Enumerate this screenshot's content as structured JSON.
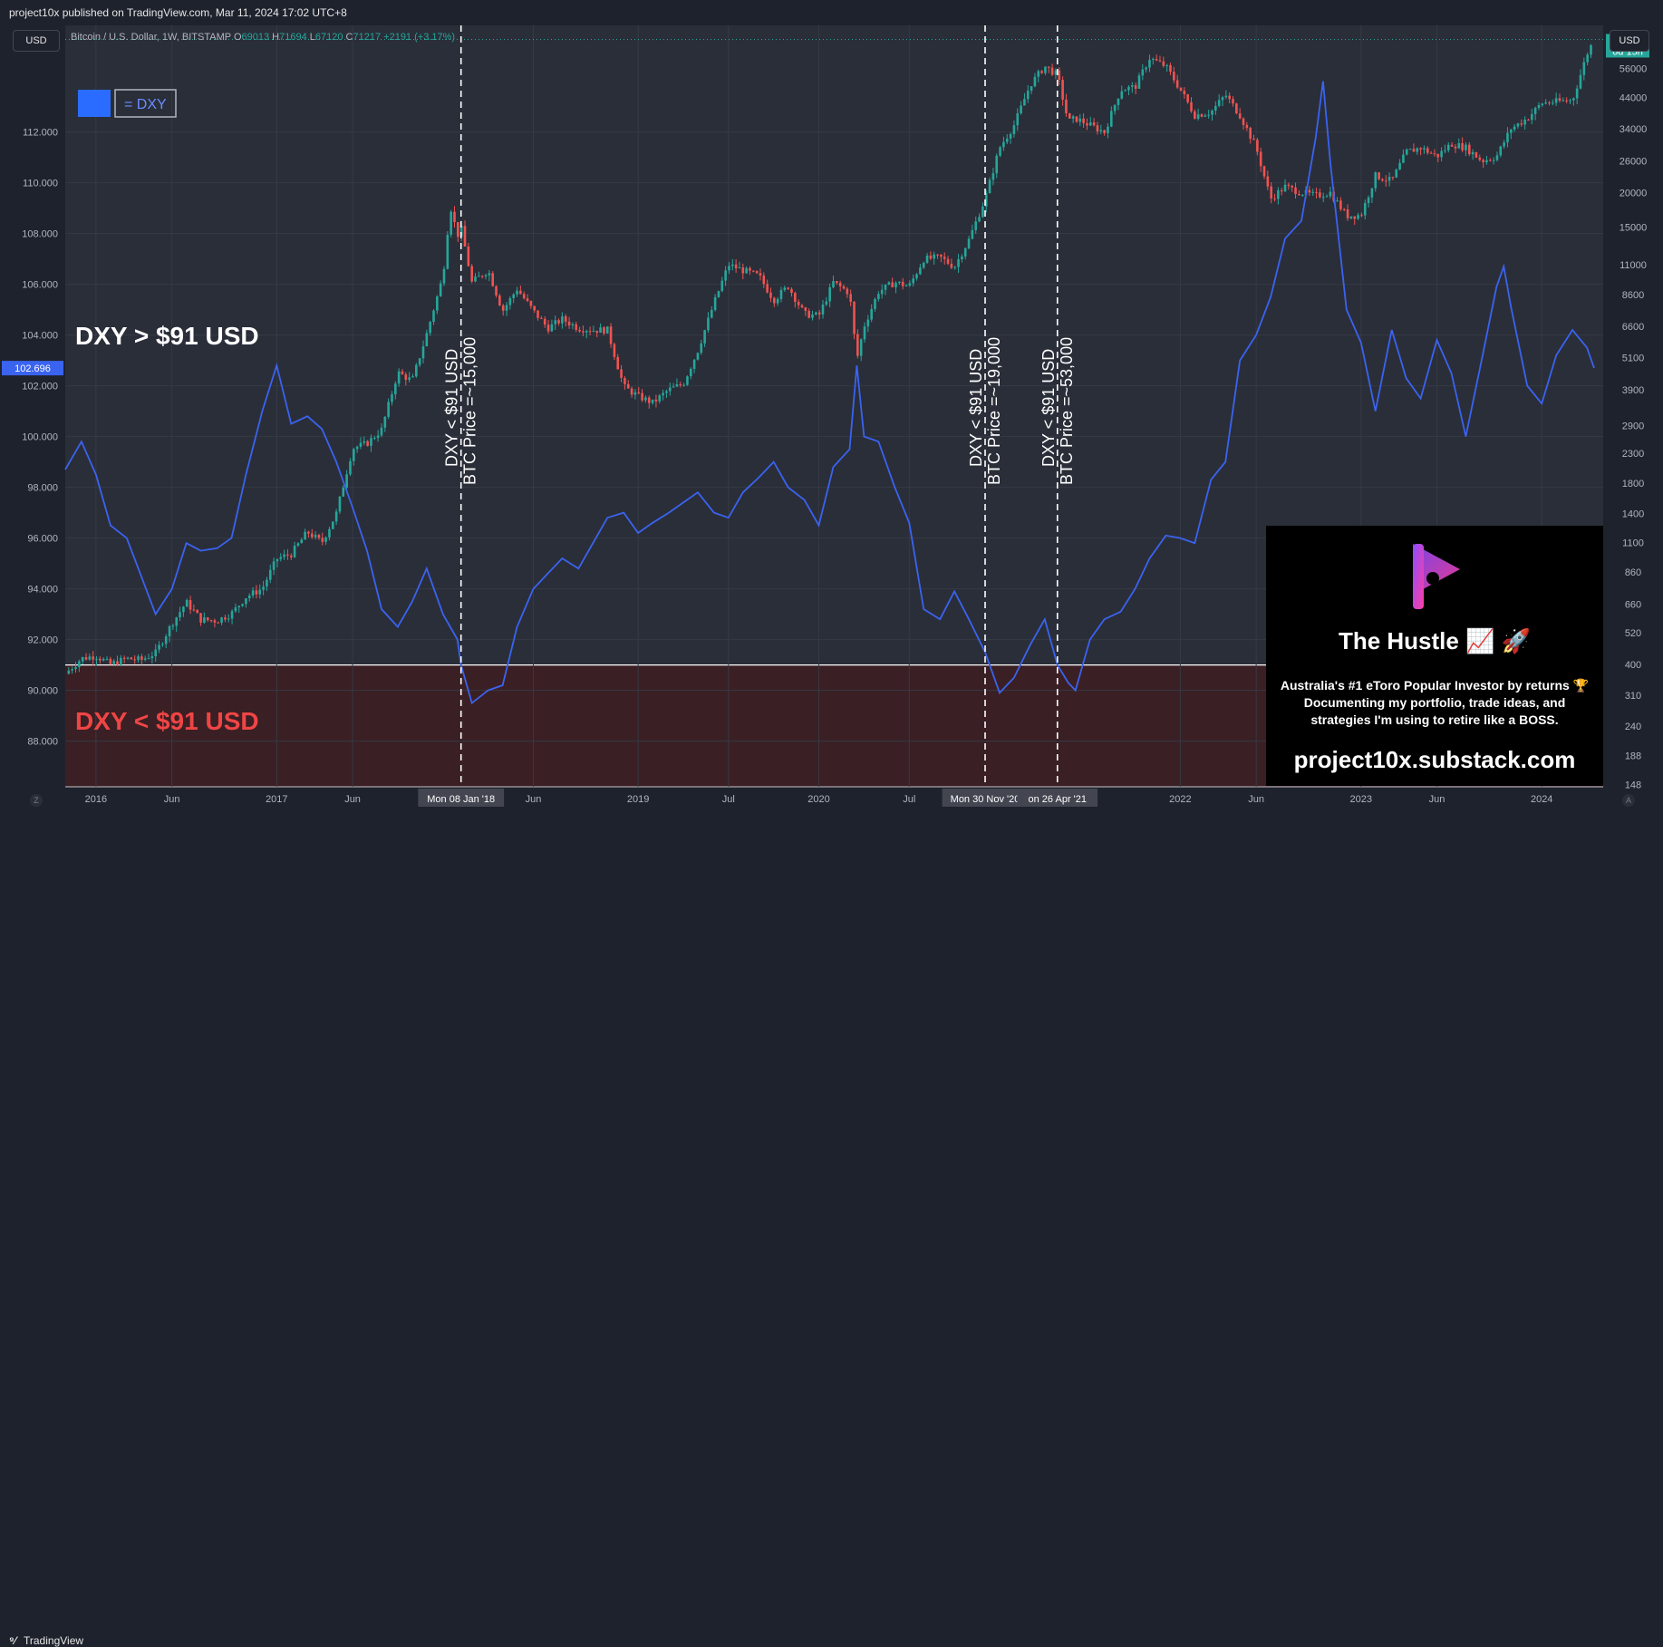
{
  "header": {
    "publisher": "project10x published on TradingView.com, Mar 11, 2024 17:02 UTC+8",
    "currency_left": "USD",
    "currency_right": "USD",
    "symbol": "Bitcoin / U.S. Dollar, 1W, BITSTAMP",
    "ohlc": {
      "o_label": "O",
      "o": "69013",
      "h_label": "H",
      "h": "71694",
      "l_label": "L",
      "l": "67120",
      "c_label": "C",
      "c": "71217",
      "change": "+2191 (+3.17%)"
    }
  },
  "footer": {
    "brand": "TradingView",
    "zoom_left": "Z",
    "zoom_right": "A"
  },
  "colors": {
    "dxy": "#3a63f0",
    "up": "#26a69a",
    "down": "#ef5350",
    "threshold_zone": "#3a1f24",
    "threshold_line": "#ffffff",
    "annotation_red": "#ef4545"
  },
  "annotations": {
    "legend_swatch_label": "= DXY",
    "dxy_above": "DXY > $91 USD",
    "dxy_below": "DXY < $91 USD",
    "verticals": [
      {
        "line1": "DXY < $91 USD",
        "line2": "BTC Price =~15,000",
        "date_label": "Mon 08 Jan '18"
      },
      {
        "line1": "DXY < $91 USD",
        "line2": "BTC Price =~19,000",
        "date_label": "Mon 30 Nov '20"
      },
      {
        "line1": "DXY < $91 USD",
        "line2": "BTC Price =~53,000",
        "date_label": "on 26 Apr '21"
      }
    ]
  },
  "promo": {
    "title": "The Hustle 📈 🚀",
    "desc_1": "Australia's #1 eToro Popular Investor by returns 🏆",
    "desc_2": "Documenting my portfolio, trade ideas, and",
    "desc_3": "strategies I'm using to retire like a BOSS.",
    "url": "project10x.substack.com"
  },
  "chart_data": {
    "type": "line",
    "title": "Bitcoin / U.S. Dollar, 1W, BITSTAMP",
    "x_ticks": [
      "2016",
      "Jun",
      "2017",
      "Jun",
      "Mon 08 Jan '18",
      "Jun",
      "2019",
      "Jul",
      "2020",
      "Jul",
      "Mon 30 Nov '20",
      "on 26 Apr '21",
      "2022",
      "Jun",
      "2023",
      "Jun",
      "2024"
    ],
    "x_tick_dates": [
      2016.0,
      2016.42,
      2017.0,
      2017.42,
      2018.02,
      2018.42,
      2019.0,
      2019.5,
      2020.0,
      2020.5,
      2020.92,
      2021.32,
      2022.0,
      2022.42,
      2023.0,
      2023.42,
      2024.0
    ],
    "x_range": [
      2015.83,
      2024.34
    ],
    "left_axis": {
      "label": "DXY",
      "ticks": [
        88,
        90,
        92,
        94,
        96,
        98,
        100,
        102,
        104,
        106,
        108,
        110,
        112
      ],
      "range": [
        86.2,
        116.2
      ],
      "current": "102.696",
      "current_value": 102.696
    },
    "right_axis": {
      "label": "BTC/USD",
      "scale": "log",
      "tick_labels": [
        "148",
        "188",
        "240",
        "310",
        "400",
        "520",
        "660",
        "860",
        "1100",
        "1400",
        "1800",
        "2300",
        "2900",
        "3900",
        "5100",
        "6600",
        "8600",
        "11000",
        "15000",
        "20000",
        "26000",
        "34000",
        "44000",
        "56000"
      ],
      "tick_values": [
        148,
        188,
        240,
        310,
        400,
        520,
        660,
        860,
        1100,
        1400,
        1800,
        2300,
        2900,
        3900,
        5100,
        6600,
        8600,
        11000,
        15000,
        20000,
        26000,
        34000,
        44000,
        56000
      ],
      "range": [
        145,
        80000
      ],
      "last_price": "71217",
      "countdown": "6d 15h"
    },
    "threshold": 91,
    "series": [
      {
        "name": "DXY",
        "axis": "left",
        "points": [
          [
            2015.83,
            98.7
          ],
          [
            2015.92,
            99.8
          ],
          [
            2016.0,
            98.5
          ],
          [
            2016.08,
            96.5
          ],
          [
            2016.17,
            96.0
          ],
          [
            2016.25,
            94.5
          ],
          [
            2016.33,
            93.0
          ],
          [
            2016.42,
            94.0
          ],
          [
            2016.5,
            95.8
          ],
          [
            2016.58,
            95.5
          ],
          [
            2016.67,
            95.6
          ],
          [
            2016.75,
            96.0
          ],
          [
            2016.83,
            98.5
          ],
          [
            2016.92,
            101.0
          ],
          [
            2017.0,
            102.8
          ],
          [
            2017.08,
            100.5
          ],
          [
            2017.17,
            100.8
          ],
          [
            2017.25,
            100.3
          ],
          [
            2017.33,
            99.0
          ],
          [
            2017.42,
            97.2
          ],
          [
            2017.5,
            95.5
          ],
          [
            2017.58,
            93.2
          ],
          [
            2017.67,
            92.5
          ],
          [
            2017.75,
            93.5
          ],
          [
            2017.83,
            94.8
          ],
          [
            2017.92,
            93.0
          ],
          [
            2018.0,
            92.0
          ],
          [
            2018.02,
            91.0
          ],
          [
            2018.08,
            89.5
          ],
          [
            2018.17,
            90.0
          ],
          [
            2018.25,
            90.2
          ],
          [
            2018.33,
            92.5
          ],
          [
            2018.42,
            94.0
          ],
          [
            2018.5,
            94.6
          ],
          [
            2018.58,
            95.2
          ],
          [
            2018.67,
            94.8
          ],
          [
            2018.75,
            95.8
          ],
          [
            2018.83,
            96.8
          ],
          [
            2018.92,
            97.0
          ],
          [
            2019.0,
            96.2
          ],
          [
            2019.08,
            96.6
          ],
          [
            2019.17,
            97.0
          ],
          [
            2019.25,
            97.4
          ],
          [
            2019.33,
            97.8
          ],
          [
            2019.42,
            97.0
          ],
          [
            2019.5,
            96.8
          ],
          [
            2019.58,
            97.8
          ],
          [
            2019.67,
            98.4
          ],
          [
            2019.75,
            99.0
          ],
          [
            2019.83,
            98.0
          ],
          [
            2019.92,
            97.5
          ],
          [
            2020.0,
            96.5
          ],
          [
            2020.08,
            98.8
          ],
          [
            2020.17,
            99.5
          ],
          [
            2020.21,
            102.8
          ],
          [
            2020.25,
            100.0
          ],
          [
            2020.33,
            99.8
          ],
          [
            2020.42,
            98.0
          ],
          [
            2020.5,
            96.6
          ],
          [
            2020.58,
            93.2
          ],
          [
            2020.67,
            92.8
          ],
          [
            2020.75,
            93.9
          ],
          [
            2020.83,
            92.8
          ],
          [
            2020.92,
            91.5
          ],
          [
            2021.0,
            89.9
          ],
          [
            2021.08,
            90.5
          ],
          [
            2021.17,
            91.8
          ],
          [
            2021.25,
            92.8
          ],
          [
            2021.32,
            91.0
          ],
          [
            2021.38,
            90.3
          ],
          [
            2021.42,
            90.0
          ],
          [
            2021.5,
            92.0
          ],
          [
            2021.58,
            92.8
          ],
          [
            2021.67,
            93.1
          ],
          [
            2021.75,
            94.0
          ],
          [
            2021.83,
            95.2
          ],
          [
            2021.92,
            96.1
          ],
          [
            2022.0,
            96.0
          ],
          [
            2022.08,
            95.8
          ],
          [
            2022.17,
            98.3
          ],
          [
            2022.25,
            99.0
          ],
          [
            2022.33,
            103.0
          ],
          [
            2022.42,
            104.0
          ],
          [
            2022.5,
            105.5
          ],
          [
            2022.58,
            107.8
          ],
          [
            2022.67,
            108.5
          ],
          [
            2022.75,
            111.8
          ],
          [
            2022.79,
            114.0
          ],
          [
            2022.83,
            110.8
          ],
          [
            2022.92,
            105.0
          ],
          [
            2023.0,
            103.7
          ],
          [
            2023.08,
            101.0
          ],
          [
            2023.17,
            104.2
          ],
          [
            2023.25,
            102.3
          ],
          [
            2023.33,
            101.5
          ],
          [
            2023.42,
            103.8
          ],
          [
            2023.5,
            102.5
          ],
          [
            2023.58,
            100.0
          ],
          [
            2023.67,
            103.1
          ],
          [
            2023.75,
            105.9
          ],
          [
            2023.79,
            106.7
          ],
          [
            2023.83,
            105.1
          ],
          [
            2023.92,
            102.0
          ],
          [
            2024.0,
            101.3
          ],
          [
            2024.08,
            103.2
          ],
          [
            2024.17,
            104.2
          ],
          [
            2024.25,
            103.5
          ],
          [
            2024.29,
            102.7
          ]
        ]
      },
      {
        "name": "BTC/USD",
        "axis": "right",
        "scale": "log",
        "points": [
          [
            2015.83,
            370
          ],
          [
            2015.92,
            420
          ],
          [
            2016.0,
            430
          ],
          [
            2016.08,
            400
          ],
          [
            2016.17,
            420
          ],
          [
            2016.25,
            415
          ],
          [
            2016.33,
            440
          ],
          [
            2016.42,
            560
          ],
          [
            2016.5,
            670
          ],
          [
            2016.58,
            580
          ],
          [
            2016.67,
            575
          ],
          [
            2016.75,
            610
          ],
          [
            2016.83,
            700
          ],
          [
            2016.92,
            750
          ],
          [
            2017.0,
            960
          ],
          [
            2017.08,
            1000
          ],
          [
            2017.17,
            1200
          ],
          [
            2017.25,
            1100
          ],
          [
            2017.33,
            1400
          ],
          [
            2017.42,
            2400
          ],
          [
            2017.5,
            2500
          ],
          [
            2017.58,
            2800
          ],
          [
            2017.67,
            4500
          ],
          [
            2017.75,
            4200
          ],
          [
            2017.83,
            6200
          ],
          [
            2017.92,
            10000
          ],
          [
            2017.96,
            18000
          ],
          [
            2018.0,
            14000
          ],
          [
            2018.02,
            15000
          ],
          [
            2018.08,
            9500
          ],
          [
            2018.17,
            10500
          ],
          [
            2018.25,
            7500
          ],
          [
            2018.33,
            9000
          ],
          [
            2018.42,
            7500
          ],
          [
            2018.5,
            6500
          ],
          [
            2018.58,
            7000
          ],
          [
            2018.67,
            6500
          ],
          [
            2018.75,
            6400
          ],
          [
            2018.83,
            6400
          ],
          [
            2018.92,
            4000
          ],
          [
            2019.0,
            3700
          ],
          [
            2019.08,
            3500
          ],
          [
            2019.17,
            3900
          ],
          [
            2019.25,
            4100
          ],
          [
            2019.33,
            5400
          ],
          [
            2019.42,
            8000
          ],
          [
            2019.5,
            11000
          ],
          [
            2019.58,
            10500
          ],
          [
            2019.67,
            10000
          ],
          [
            2019.75,
            8200
          ],
          [
            2019.83,
            9200
          ],
          [
            2019.92,
            7300
          ],
          [
            2020.0,
            7200
          ],
          [
            2020.08,
            9500
          ],
          [
            2020.17,
            8700
          ],
          [
            2020.21,
            5000
          ],
          [
            2020.25,
            6600
          ],
          [
            2020.33,
            8800
          ],
          [
            2020.42,
            9500
          ],
          [
            2020.5,
            9200
          ],
          [
            2020.58,
            11500
          ],
          [
            2020.67,
            11700
          ],
          [
            2020.75,
            10800
          ],
          [
            2020.83,
            13500
          ],
          [
            2020.92,
            19000
          ],
          [
            2021.0,
            29000
          ],
          [
            2021.08,
            35000
          ],
          [
            2021.17,
            49000
          ],
          [
            2021.25,
            57000
          ],
          [
            2021.32,
            53000
          ],
          [
            2021.38,
            36000
          ],
          [
            2021.42,
            37000
          ],
          [
            2021.5,
            35000
          ],
          [
            2021.58,
            33000
          ],
          [
            2021.67,
            47000
          ],
          [
            2021.75,
            48000
          ],
          [
            2021.83,
            61000
          ],
          [
            2021.92,
            57000
          ],
          [
            2022.0,
            47000
          ],
          [
            2022.08,
            38000
          ],
          [
            2022.17,
            39000
          ],
          [
            2022.25,
            45000
          ],
          [
            2022.33,
            38000
          ],
          [
            2022.42,
            29000
          ],
          [
            2022.5,
            19000
          ],
          [
            2022.58,
            21000
          ],
          [
            2022.67,
            20000
          ],
          [
            2022.75,
            19500
          ],
          [
            2022.83,
            20000
          ],
          [
            2022.92,
            16500
          ],
          [
            2023.0,
            16600
          ],
          [
            2023.08,
            23000
          ],
          [
            2023.17,
            22000
          ],
          [
            2023.25,
            28000
          ],
          [
            2023.33,
            29000
          ],
          [
            2023.42,
            27000
          ],
          [
            2023.5,
            30000
          ],
          [
            2023.58,
            29000
          ],
          [
            2023.67,
            26000
          ],
          [
            2023.75,
            27000
          ],
          [
            2023.83,
            34000
          ],
          [
            2023.92,
            37000
          ],
          [
            2024.0,
            42000
          ],
          [
            2024.08,
            42500
          ],
          [
            2024.17,
            43000
          ],
          [
            2024.21,
            52000
          ],
          [
            2024.25,
            63000
          ],
          [
            2024.29,
            71217
          ]
        ]
      }
    ],
    "grid": true,
    "legend_position": "top-left"
  }
}
